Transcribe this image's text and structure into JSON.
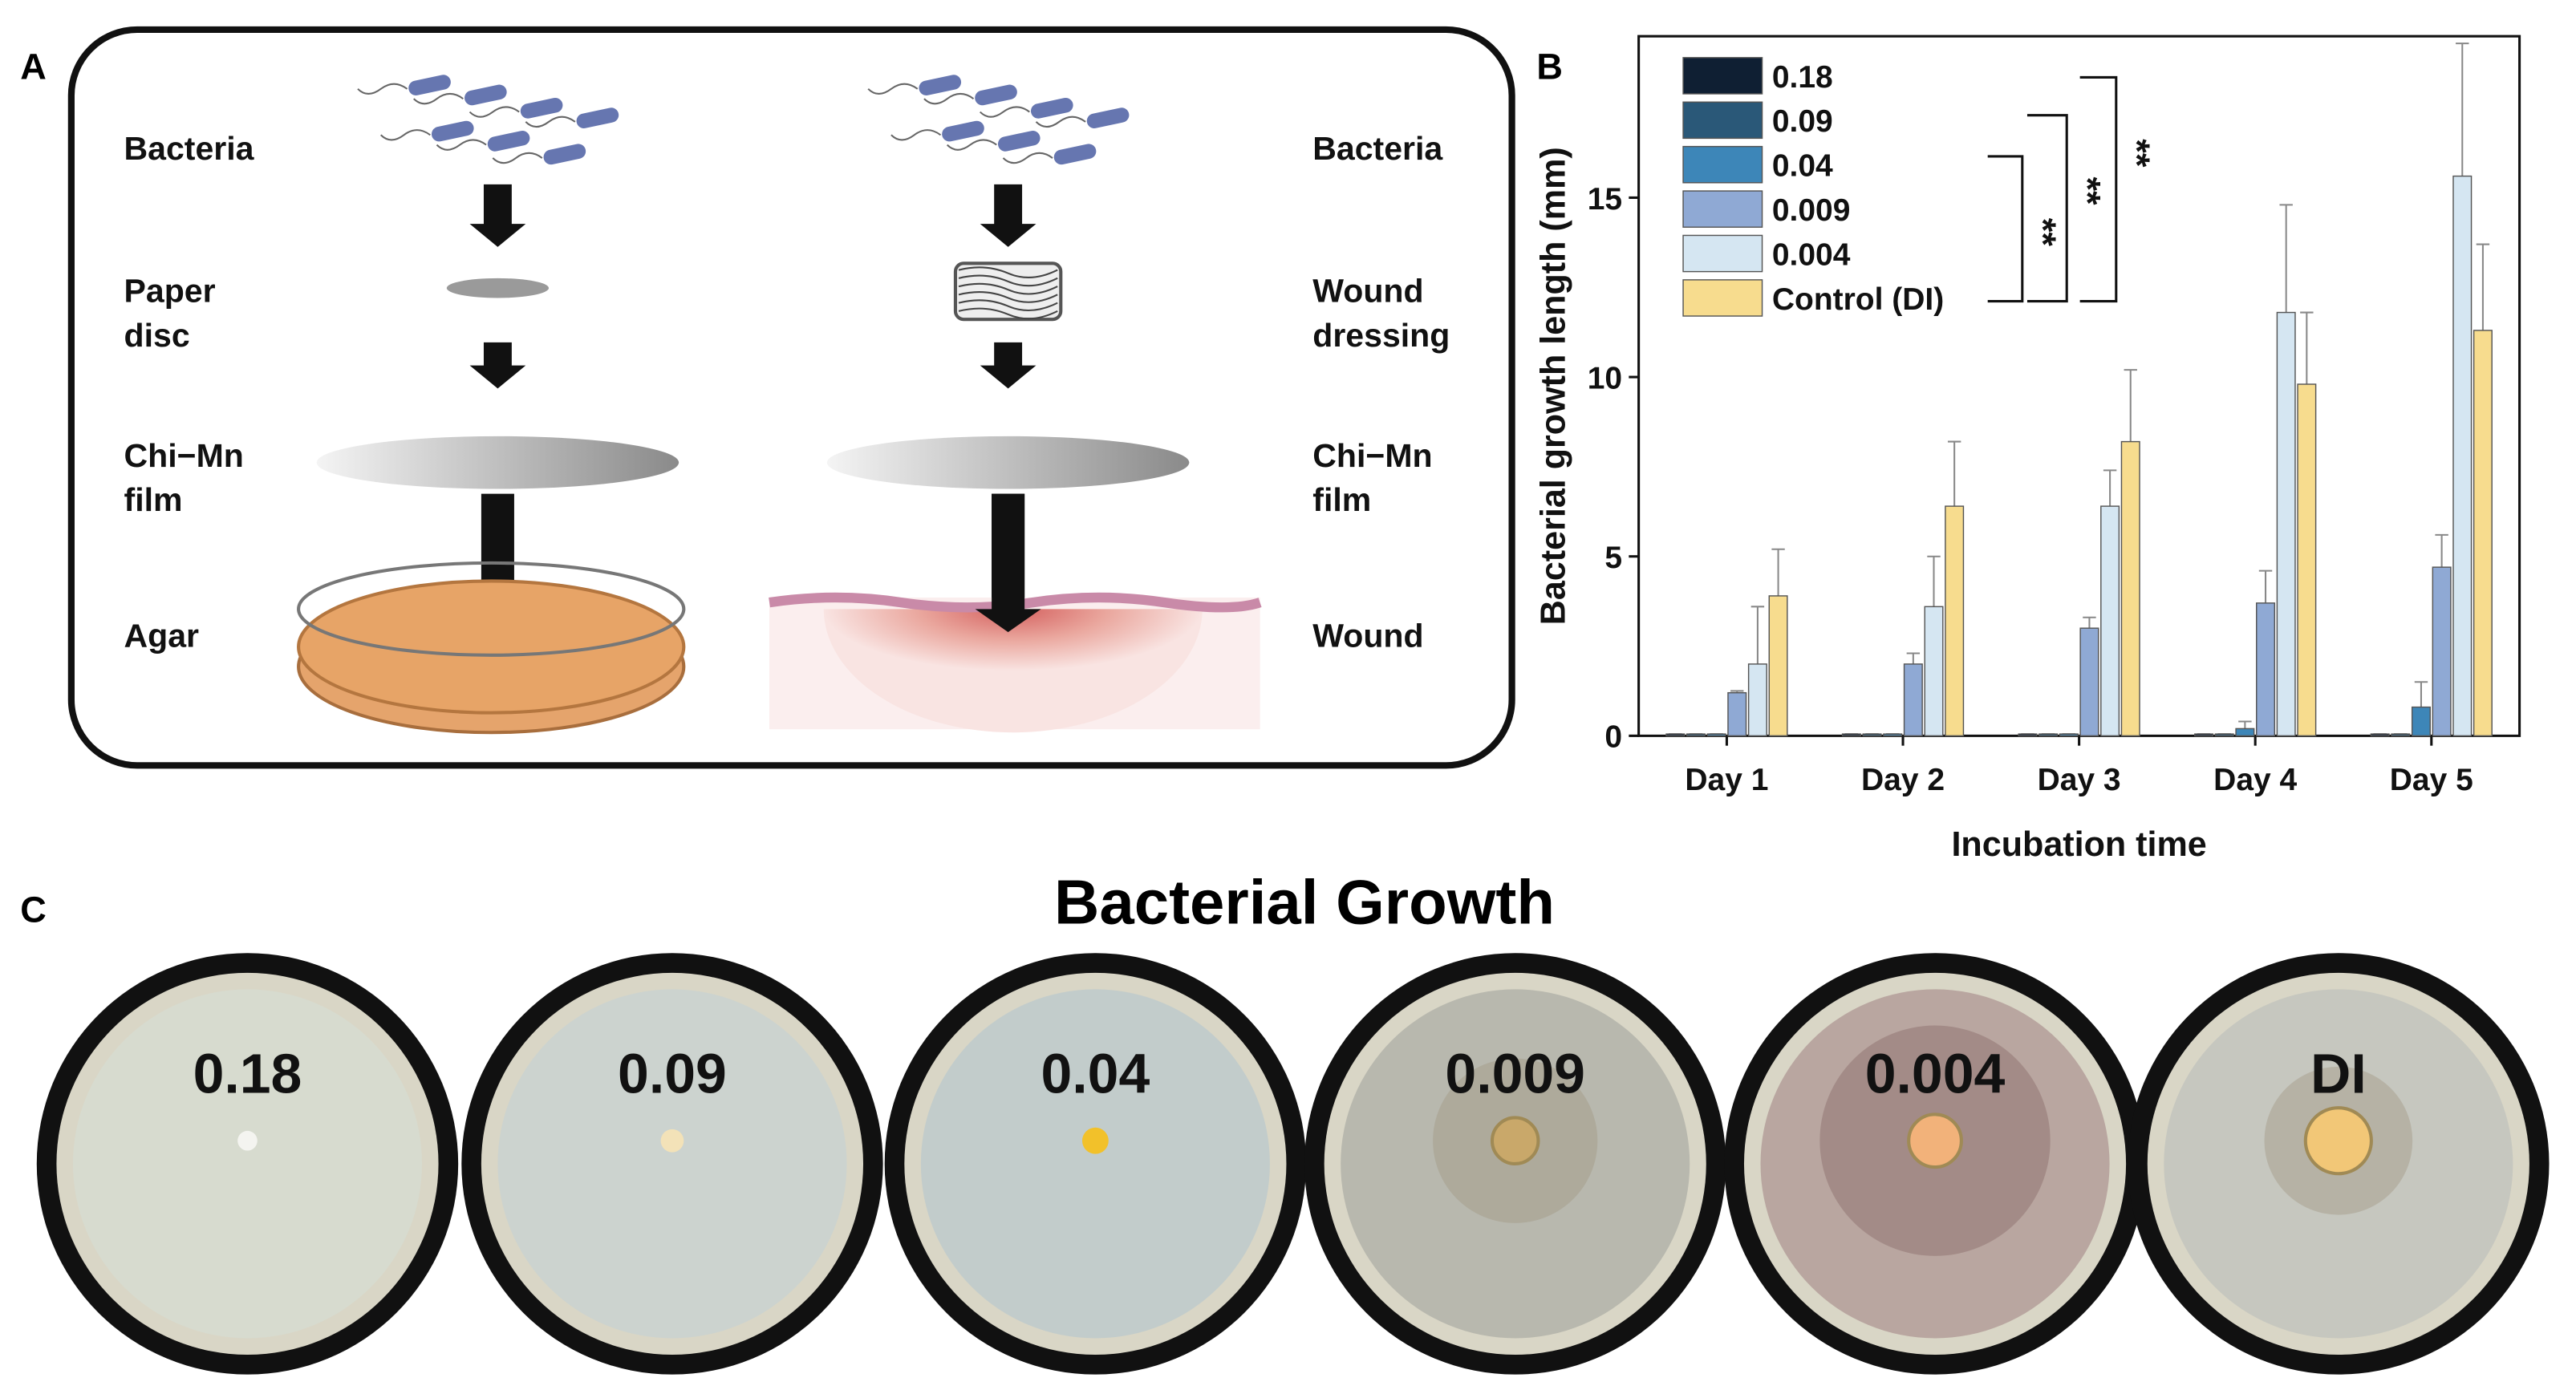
{
  "panel_a": {
    "label": "A",
    "left": [
      [
        "Bacteria"
      ],
      [
        "Paper",
        "disc"
      ],
      [
        "Chi−Mn",
        "film"
      ],
      [
        "Agar"
      ]
    ],
    "right": [
      [
        "Bacteria"
      ],
      [
        "Wound",
        "dressing"
      ],
      [
        "Chi−Mn",
        "film"
      ],
      [
        "Wound"
      ]
    ]
  },
  "chart_data": {
    "type": "bar",
    "panel_label": "B",
    "x_label": "Incubation time",
    "y_label": "Bacterial growth length (mm)",
    "categories": [
      "Day 1",
      "Day 2",
      "Day 3",
      "Day 4",
      "Day 5"
    ],
    "series": [
      {
        "name": "0.18",
        "color": "#0f1f33",
        "values": [
          0.05,
          0.05,
          0.05,
          0.05,
          0.05
        ],
        "errors": [
          0,
          0,
          0,
          0,
          0
        ]
      },
      {
        "name": "0.09",
        "color": "#2a5878",
        "values": [
          0.05,
          0.05,
          0.05,
          0.05,
          0.05
        ],
        "errors": [
          0,
          0,
          0,
          0,
          0
        ]
      },
      {
        "name": "0.04",
        "color": "#3d86b8",
        "values": [
          0.05,
          0.05,
          0.05,
          0.2,
          0.8
        ],
        "errors": [
          0,
          0,
          0,
          0.2,
          0.7
        ]
      },
      {
        "name": "0.009",
        "color": "#8fa9d4",
        "values": [
          1.2,
          2.0,
          3.0,
          3.7,
          4.7
        ],
        "errors": [
          0.05,
          0.3,
          0.3,
          0.9,
          0.9
        ]
      },
      {
        "name": "0.004",
        "color": "#d5e6f2",
        "values": [
          2.0,
          3.6,
          6.4,
          11.8,
          15.6
        ],
        "errors": [
          1.6,
          1.4,
          1.0,
          3.0,
          3.7
        ]
      },
      {
        "name": "Control (DI)",
        "color": "#f7dc8e",
        "values": [
          3.9,
          6.4,
          8.2,
          9.8,
          11.3
        ],
        "errors": [
          1.3,
          1.8,
          2.0,
          2.0,
          2.4
        ]
      }
    ],
    "ylim": [
      0,
      19.5
    ],
    "yticks": [
      0,
      5,
      10,
      15
    ],
    "legend": "upper left",
    "annotations": [
      "**",
      "**",
      "**"
    ]
  },
  "panel_c": {
    "label": "C",
    "title": "Bacterial Growth",
    "plates": [
      "0.18",
      "0.09",
      "0.04",
      "0.009",
      "0.004",
      "DI"
    ]
  }
}
